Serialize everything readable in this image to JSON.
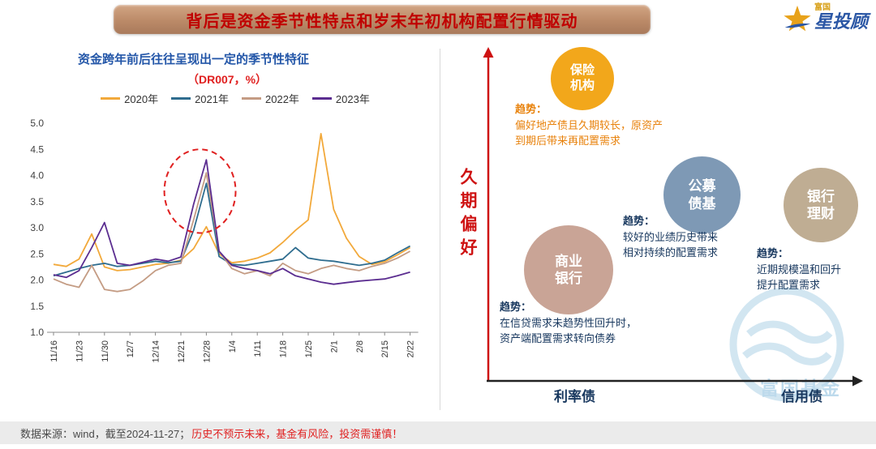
{
  "header": {
    "title": "背后是资金季节性特点和岁末年初机构配置行情驱动"
  },
  "logo": {
    "small_text": "富国",
    "main_text": "星投顾",
    "star_icon": "star-icon",
    "star_color": "#e8a21a",
    "text_color": "#2b57a5"
  },
  "chart": {
    "title": "资金跨年前后往往呈现出一定的季节性特征",
    "subtitle": "（DR007，%）"
  },
  "chart_data": {
    "type": "line",
    "title": "资金跨年前后往往呈现出一定的季节性特征",
    "subtitle": "（DR007，%）",
    "ylabel": "DR007 (%)",
    "ylim": [
      1.0,
      5.0
    ],
    "ytick_step": 0.5,
    "grid": false,
    "legend_position": "top",
    "x_labels": [
      "11/16",
      "11/23",
      "11/30",
      "12/7",
      "12/14",
      "12/21",
      "12/28",
      "1/4",
      "1/11",
      "1/18",
      "1/25",
      "2/1",
      "2/8",
      "2/15",
      "2/22"
    ],
    "series": [
      {
        "name": "2020年",
        "color": "#f2a93b",
        "values": [
          2.3,
          2.26,
          2.4,
          2.88,
          2.25,
          2.18,
          2.2,
          2.25,
          2.3,
          2.32,
          2.38,
          2.6,
          3.02,
          2.5,
          2.33,
          2.36,
          2.42,
          2.52,
          2.72,
          2.95,
          3.15,
          4.8,
          3.35,
          2.8,
          2.45,
          2.3,
          2.35,
          2.48,
          2.62
        ]
      },
      {
        "name": "2021年",
        "color": "#2f6d8f",
        "values": [
          2.08,
          2.15,
          2.22,
          2.28,
          2.32,
          2.26,
          2.28,
          2.32,
          2.36,
          2.33,
          2.36,
          2.95,
          3.85,
          2.45,
          2.3,
          2.28,
          2.32,
          2.36,
          2.4,
          2.62,
          2.42,
          2.38,
          2.36,
          2.32,
          2.28,
          2.32,
          2.38,
          2.52,
          2.65
        ]
      },
      {
        "name": "2022年",
        "color": "#c49c84",
        "values": [
          2.02,
          1.92,
          1.86,
          2.28,
          1.82,
          1.78,
          1.82,
          1.98,
          2.18,
          2.28,
          2.32,
          3.15,
          4.05,
          2.55,
          2.22,
          2.12,
          2.18,
          2.08,
          2.32,
          2.18,
          2.12,
          2.22,
          2.28,
          2.22,
          2.18,
          2.26,
          2.32,
          2.42,
          2.55
        ]
      },
      {
        "name": "2023年",
        "color": "#5b2d90",
        "values": [
          2.1,
          2.05,
          2.18,
          2.62,
          3.1,
          2.32,
          2.28,
          2.34,
          2.4,
          2.36,
          2.44,
          3.45,
          4.3,
          2.55,
          2.28,
          2.22,
          2.18,
          2.12,
          2.22,
          2.08,
          2.02,
          1.96,
          1.92,
          1.95,
          1.98,
          2.0,
          2.02,
          2.08,
          2.15
        ]
      }
    ],
    "highlight": {
      "style": "dashed-ellipse",
      "color": "#e02020",
      "x_tick_index": 5.75,
      "y_value": 3.7,
      "rx_ticks": 1.4,
      "ry_values": 0.8
    }
  },
  "diagram": {
    "axis": {
      "y_label": "久期偏好",
      "x_left": "利率债",
      "x_right": "信用债",
      "y_axis_color": "#ce1212",
      "x_axis_color": "#222222"
    },
    "bubbles": {
      "insurance": {
        "line1": "保险",
        "line2": "机构",
        "color": "#f2a71b"
      },
      "mutual_fund": {
        "line1": "公募",
        "line2": "债基",
        "color": "#7e99b5"
      },
      "bank_wealth": {
        "line1": "银行",
        "line2": "理财",
        "color": "#bfad93"
      },
      "commercial_bank": {
        "line1": "商业",
        "line2": "银行",
        "color": "#c9a496"
      }
    },
    "trends": {
      "insurance": {
        "title": "趋势：",
        "line1": "偏好地产债且久期较长，原资产",
        "line2": "到期后带来再配置需求"
      },
      "mutual_fund": {
        "title": "趋势：",
        "line1": "较好的业绩历史带来",
        "line2": "相对持续的配置需求"
      },
      "bank_wealth": {
        "title": "趋势：",
        "line1": "近期规模温和回升",
        "line2": "提升配置需求"
      },
      "commercial_bank": {
        "title": "趋势：",
        "line1": "在信贷需求未趋势性回升时，",
        "line2": "资产端配置需求转向债券"
      }
    }
  },
  "watermark": {
    "text": "富国基金",
    "color": "#6fafd6"
  },
  "footer": {
    "source": "数据来源：wind，截至2024-11-27；",
    "disclaimer": "历史不预示未来，基金有风险，投资需谨慎！"
  }
}
